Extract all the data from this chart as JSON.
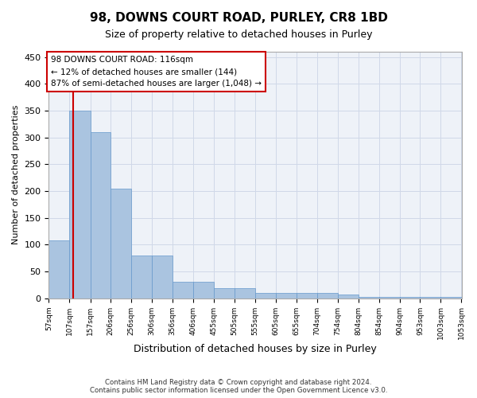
{
  "title": "98, DOWNS COURT ROAD, PURLEY, CR8 1BD",
  "subtitle": "Size of property relative to detached houses in Purley",
  "xlabel": "Distribution of detached houses by size in Purley",
  "ylabel": "Number of detached properties",
  "footer_line1": "Contains HM Land Registry data © Crown copyright and database right 2024.",
  "footer_line2": "Contains public sector information licensed under the Open Government Licence v3.0.",
  "property_size": 116,
  "property_label": "98 DOWNS COURT ROAD: 116sqm",
  "annotation_line2": "← 12% of detached houses are smaller (144)",
  "annotation_line3": "87% of semi-detached houses are larger (1,048) →",
  "bar_edges": [
    57,
    107,
    157,
    206,
    256,
    306,
    356,
    406,
    455,
    505,
    555,
    605,
    655,
    704,
    754,
    804,
    854,
    904,
    953,
    1003,
    1053
  ],
  "bar_heights": [
    108,
    350,
    310,
    205,
    80,
    80,
    30,
    30,
    18,
    18,
    10,
    10,
    10,
    10,
    7,
    2,
    2,
    2,
    2,
    2
  ],
  "bar_color": "#aac4e0",
  "bar_edge_color": "#6699cc",
  "grid_color": "#d0d8e8",
  "background_color": "#eef2f8",
  "vline_color": "#cc0000",
  "annotation_box_color": "#cc0000",
  "ylim": [
    0,
    460
  ],
  "yticks": [
    0,
    50,
    100,
    150,
    200,
    250,
    300,
    350,
    400,
    450
  ]
}
